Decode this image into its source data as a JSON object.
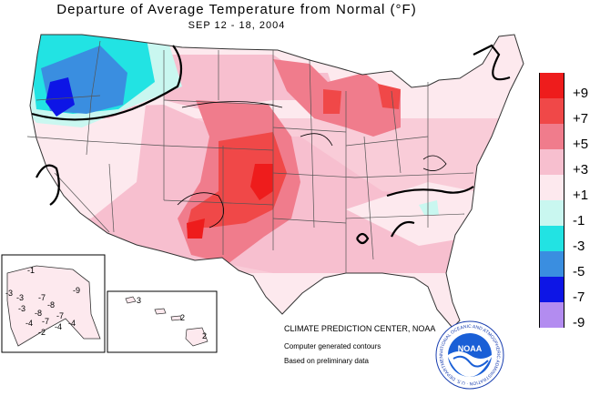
{
  "title": "Departure of Average Temperature from Normal (°F)",
  "subtitle": "SEP 12 - 18, 2004",
  "legend": [
    {
      "label": "+9",
      "color": "#ee1c1c"
    },
    {
      "label": "+7",
      "color": "#f04848"
    },
    {
      "label": "+5",
      "color": "#f07c8c"
    },
    {
      "label": "+3",
      "color": "#f7bfcf"
    },
    {
      "label": "+1",
      "color": "#fde9ee"
    },
    {
      "label": "-1",
      "color": "#c9f7f0"
    },
    {
      "label": "-3",
      "color": "#22e3e3"
    },
    {
      "label": "-5",
      "color": "#3a8ee0"
    },
    {
      "label": "-7",
      "color": "#0d15e6"
    },
    {
      "label": "-9",
      "color": "#b38cf0"
    }
  ],
  "credits": {
    "org": "CLIMATE PREDICTION CENTER, NOAA",
    "line2": "Computer generated contours",
    "line3": "Based on preliminary data"
  },
  "noaa_logo": {
    "text": "NOAA",
    "ring_text": "NATIONAL OCEANIC AND ATMOSPHERIC ADMINISTRATION · U.S. DEPARTMENT OF COMMERCE"
  },
  "alaska_labels": [
    "-3",
    "-7",
    "-9",
    "-3",
    "-8",
    "-8",
    "-4",
    "-7",
    "-7",
    "-4",
    "-4",
    "-3",
    "-1",
    "-2"
  ],
  "hawaii_labels": [
    "3",
    "2",
    "2"
  ]
}
